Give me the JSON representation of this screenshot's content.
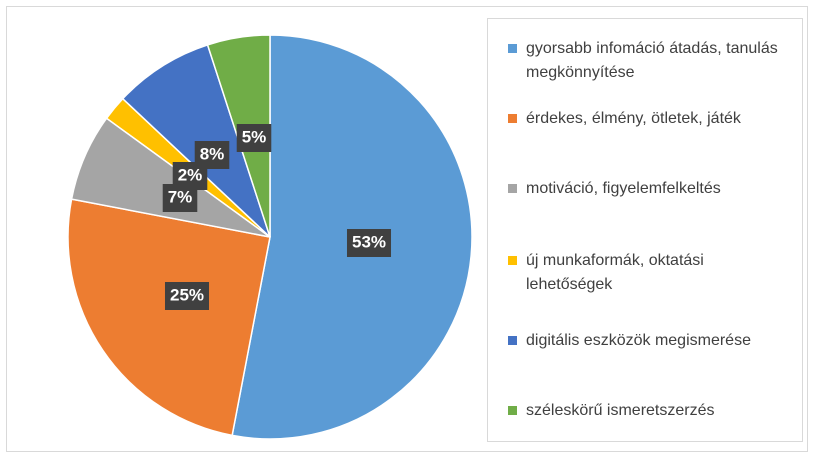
{
  "chart_data": {
    "type": "pie",
    "categories": [
      "gyorsabb infomáció átadás, tanulás megkönnyítése",
      "érdekes, élmény, ötletek, játék",
      "motiváció, figyelemfelkeltés",
      "új munkaformák, oktatási lehetőségek",
      "digitális eszközök megismerése",
      "széleskörű ismeretszerzés"
    ],
    "values": [
      53,
      25,
      7,
      2,
      8,
      5
    ],
    "value_labels": [
      "53%",
      "25%",
      "7%",
      "2%",
      "8%",
      "5%"
    ],
    "colors": [
      "#5b9bd5",
      "#ed7d31",
      "#a5a5a5",
      "#ffc000",
      "#4472c4",
      "#70ad47"
    ],
    "legend": "right"
  }
}
